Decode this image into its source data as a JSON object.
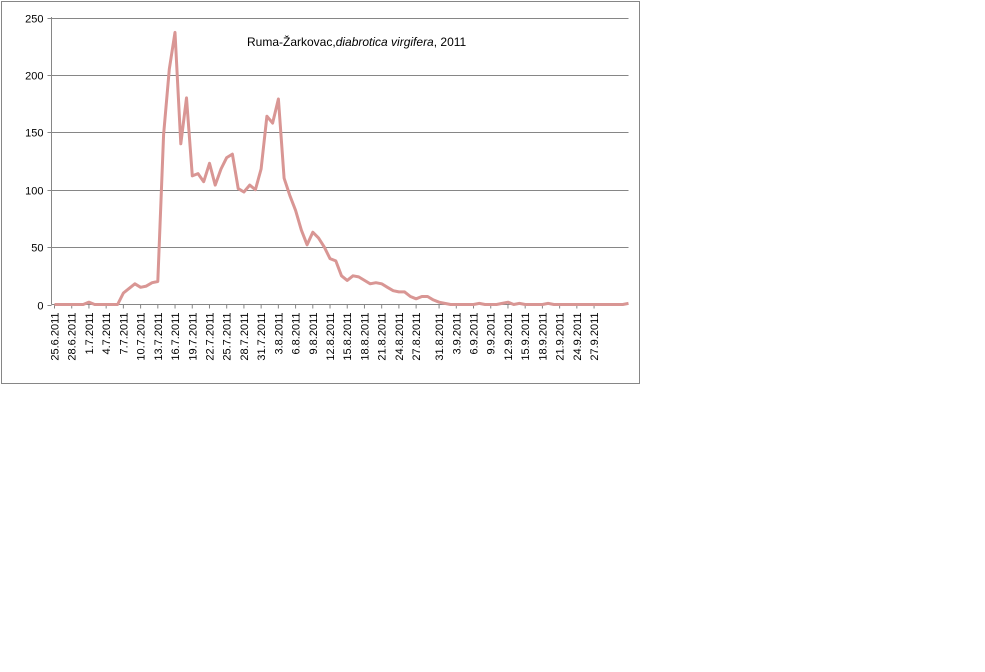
{
  "chart_data": {
    "type": "line",
    "title_parts": [
      {
        "text": "Ruma-Žarkovac,",
        "italic": false
      },
      {
        "text": "diabrotica virgifera",
        "italic": true
      },
      {
        "text": ", 2011",
        "italic": false
      }
    ],
    "xlabel": "",
    "ylabel": "",
    "ylim": [
      0,
      250
    ],
    "yticks": [
      0,
      50,
      100,
      150,
      200,
      250
    ],
    "grid": true,
    "legend": "none",
    "x_start_date": "25.6.2011",
    "x_tick_labels": [
      "25.6.2011",
      "28.6.2011",
      "1.7.2011",
      "4.7.2011",
      "7.7.2011",
      "10.7.2011",
      "13.7.2011",
      "16.7.2011",
      "19.7.2011",
      "22.7.2011",
      "25.7.2011",
      "28.7.2011",
      "31.7.2011",
      "3.8.2011",
      "6.8.2011",
      "9.8.2011",
      "12.8.2011",
      "15.8.2011",
      "18.8.2011",
      "21.8.2011",
      "24.8.2011",
      "27.8.2011",
      "31.8.2011",
      "3.9.2011",
      "6.9.2011",
      "9.9.2011",
      "12.9.2011",
      "15.9.2011",
      "18.9.2011",
      "21.9.2011",
      "24.9.2011",
      "27.9.2011"
    ],
    "series": [
      {
        "color": "#D99694",
        "values": [
          0,
          0,
          0,
          0,
          0,
          0,
          2,
          0,
          0,
          0,
          0,
          0,
          10,
          14,
          18,
          15,
          16,
          19,
          20,
          148,
          205,
          237,
          140,
          180,
          112,
          114,
          107,
          123,
          104,
          118,
          128,
          131,
          101,
          98,
          104,
          100,
          118,
          164,
          158,
          179,
          110,
          95,
          82,
          65,
          52,
          63,
          58,
          50,
          40,
          38,
          25,
          21,
          25,
          24,
          21,
          18,
          19,
          18,
          15,
          12,
          11,
          11,
          7,
          5,
          7,
          7,
          4,
          2,
          1,
          0,
          0,
          0,
          0,
          0,
          1,
          0,
          0,
          0,
          1,
          2,
          0,
          1,
          0,
          0,
          0,
          0,
          1,
          0,
          0,
          0,
          0,
          0,
          0,
          0,
          0,
          0,
          0,
          0,
          0,
          0,
          1
        ]
      }
    ]
  }
}
